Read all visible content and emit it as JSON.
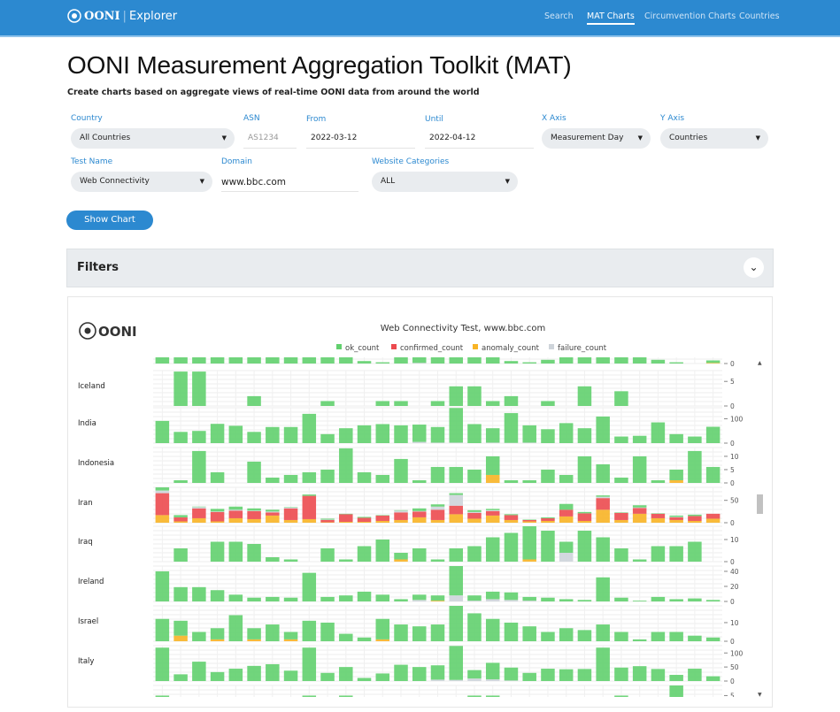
{
  "nav": {
    "brand": "OONI",
    "product": "Explorer",
    "items": [
      {
        "label": "Search"
      },
      {
        "label": "MAT Charts",
        "active": true
      },
      {
        "label": "Circumvention Charts"
      },
      {
        "label": "Countries"
      }
    ]
  },
  "page": {
    "title": "OONI Measurement Aggregation Toolkit (MAT)",
    "subtitle": "Create charts based on aggregate views of real-time OONI data from around the world"
  },
  "form": {
    "country": {
      "label": "Country",
      "value": "All Countries"
    },
    "asn": {
      "label": "ASN",
      "placeholder": "AS1234"
    },
    "from": {
      "label": "From",
      "value": "2022-03-12"
    },
    "until": {
      "label": "Until",
      "value": "2022-04-12"
    },
    "x_axis": {
      "label": "X Axis",
      "value": "Measurement Day"
    },
    "y_axis": {
      "label": "Y Axis",
      "value": "Countries"
    },
    "test_name": {
      "label": "Test Name",
      "value": "Web Connectivity"
    },
    "domain": {
      "label": "Domain",
      "value": "www.bbc.com"
    },
    "categories": {
      "label": "Website Categories",
      "value": "ALL"
    },
    "show_chart": "Show Chart"
  },
  "filters": {
    "label": "Filters",
    "icon": "chevron-down-icon"
  },
  "chart_logo": "OONI",
  "chart_data": {
    "type": "bar",
    "stacked": true,
    "title": "Web Connectivity Test, www.bbc.com",
    "x_axis": "Measurement Day",
    "legend_placement": "top-center",
    "legend": [
      {
        "name": "ok_count",
        "color": "#62d06e"
      },
      {
        "name": "confirmed_count",
        "color": "#ec4a4f"
      },
      {
        "name": "anomaly_count",
        "color": "#f8b425"
      },
      {
        "name": "failure_count",
        "color": "#ced4da"
      }
    ],
    "rows": [
      {
        "label": "",
        "ticks": [
          0
        ],
        "ylim": [
          0,
          57
        ],
        "ok": [
          10,
          10,
          10,
          10,
          10,
          10,
          10,
          10,
          10,
          10,
          10,
          4,
          2,
          10,
          9,
          10,
          10,
          10,
          10,
          4,
          2,
          6,
          10,
          10,
          10,
          10,
          10,
          6,
          2,
          0,
          4
        ],
        "anomaly": [
          0,
          0,
          0,
          0,
          0,
          0,
          0,
          0,
          0,
          0,
          0,
          0,
          0,
          0,
          0,
          0,
          0,
          0,
          0,
          0,
          0,
          0,
          0,
          0,
          0,
          0,
          0,
          0,
          0,
          0,
          1
        ],
        "failure": [
          0,
          0,
          0,
          0,
          0,
          0,
          0,
          0,
          0,
          0,
          0,
          0,
          0,
          0,
          1,
          0,
          0,
          0,
          0,
          0,
          0,
          0,
          0,
          0,
          0,
          0,
          0,
          0,
          0,
          0,
          0
        ]
      },
      {
        "label": "Iceland",
        "ticks": [
          0,
          5
        ],
        "ylim": [
          0,
          7.2
        ],
        "ok": [
          0,
          7,
          7,
          0,
          0,
          2,
          0,
          0,
          0,
          1,
          0,
          0,
          1,
          1,
          0,
          1,
          4,
          4,
          1,
          2,
          0,
          1,
          0,
          4,
          0,
          3,
          0,
          0,
          0,
          0,
          0
        ]
      },
      {
        "label": "India",
        "ticks": [
          0,
          100
        ],
        "ylim": [
          0,
          145
        ],
        "ok": [
          91,
          46,
          50,
          79,
          71,
          46,
          66,
          66,
          120,
          37,
          61,
          73,
          78,
          73,
          71,
          64,
          142,
          78,
          59,
          122,
          71,
          57,
          82,
          61,
          109,
          27,
          30,
          85,
          37,
          27,
          67
        ],
        "failure": [
          0,
          0,
          0,
          0,
          0,
          0,
          0,
          0,
          0,
          0,
          0,
          0,
          0,
          0,
          5,
          2,
          2,
          0,
          2,
          1,
          2,
          0,
          0,
          0,
          0,
          0,
          0,
          0,
          0,
          0,
          0
        ]
      },
      {
        "label": "Indonesia",
        "ticks": [
          0,
          5,
          10
        ],
        "ylim": [
          0,
          13.3
        ],
        "ok": [
          0,
          1,
          12,
          4,
          0,
          8,
          2,
          3,
          4,
          5,
          13,
          4,
          3,
          9,
          1,
          6,
          6,
          5,
          7,
          1,
          1,
          5,
          3,
          10,
          7,
          2,
          10,
          1,
          4,
          12,
          6
        ],
        "anomaly": [
          0,
          0,
          0,
          0,
          0,
          0,
          0,
          0,
          0,
          0,
          0,
          0,
          0,
          0,
          0,
          0,
          0,
          0,
          3,
          0,
          0,
          0,
          0,
          0,
          0,
          0,
          0,
          0,
          1,
          0,
          0
        ]
      },
      {
        "label": "Iran",
        "ticks": [
          0,
          50
        ],
        "ylim": [
          0,
          79
        ],
        "ok": [
          7,
          5,
          1,
          6,
          7,
          5,
          4,
          1,
          3,
          2,
          1,
          2,
          1,
          1,
          6,
          5,
          4,
          4,
          3,
          2,
          1,
          2,
          13,
          3,
          3,
          1,
          5,
          1,
          3,
          3,
          0
        ],
        "confirmed": [
          49,
          9,
          22,
          21,
          17,
          18,
          7,
          26,
          52,
          5,
          17,
          9,
          12,
          17,
          13,
          23,
          19,
          13,
          10,
          11,
          3,
          6,
          15,
          17,
          26,
          16,
          13,
          10,
          6,
          11,
          11
        ],
        "anomaly": [
          17,
          3,
          10,
          3,
          10,
          8,
          16,
          6,
          8,
          1,
          2,
          2,
          4,
          6,
          12,
          6,
          19,
          9,
          16,
          6,
          3,
          4,
          14,
          4,
          29,
          6,
          20,
          10,
          6,
          4,
          9
        ],
        "failure": [
          6,
          0,
          3,
          1,
          2,
          1,
          2,
          2,
          0,
          1,
          0,
          0,
          0,
          4,
          1,
          7,
          24,
          2,
          2,
          0,
          0,
          0,
          0,
          0,
          3,
          0,
          1,
          0,
          1,
          0,
          0
        ]
      },
      {
        "label": "Iraq",
        "ticks": [
          0,
          10
        ],
        "ylim": [
          0,
          16
        ],
        "ok": [
          0,
          6,
          0,
          9,
          9,
          8,
          2,
          1,
          0,
          6,
          1,
          7,
          10,
          3,
          6,
          1,
          6,
          7,
          11,
          13,
          15,
          14,
          5,
          14,
          11,
          6,
          1,
          7,
          7,
          9,
          0
        ],
        "anomaly": [
          0,
          0,
          0,
          0,
          0,
          0,
          0,
          0,
          0,
          0,
          0,
          0,
          0,
          1,
          0,
          0,
          0,
          0,
          0,
          0,
          1,
          0,
          0,
          0,
          0,
          0,
          0,
          0,
          0,
          0,
          0
        ],
        "failure": [
          0,
          0,
          0,
          0,
          0,
          0,
          0,
          0,
          0,
          0,
          0,
          0,
          0,
          0,
          0,
          0,
          0,
          0,
          0,
          0,
          0,
          0,
          4,
          0,
          0,
          0,
          0,
          0,
          0,
          0,
          0
        ]
      },
      {
        "label": "Ireland",
        "ticks": [
          0,
          20,
          40
        ],
        "ylim": [
          0,
          47
        ],
        "ok": [
          40,
          19,
          19,
          15,
          9,
          5,
          6,
          5,
          38,
          6,
          8,
          13,
          9,
          3,
          7,
          7,
          39,
          7,
          10,
          10,
          5,
          5,
          3,
          2,
          32,
          5,
          1,
          6,
          3,
          4,
          2
        ],
        "anomaly": [
          0,
          0,
          0,
          0,
          0,
          0,
          0,
          0,
          0,
          0,
          0,
          0,
          0,
          0,
          0,
          1,
          0,
          0,
          0,
          0,
          0,
          0,
          0,
          0,
          0,
          0,
          0,
          0,
          0,
          0,
          0
        ],
        "failure": [
          0,
          0,
          0,
          0,
          0,
          0,
          0,
          0,
          0,
          0,
          0,
          0,
          0,
          0,
          2,
          0,
          8,
          1,
          3,
          2,
          1,
          0,
          0,
          0,
          0,
          0,
          0,
          0,
          0,
          0,
          0
        ]
      },
      {
        "label": "Israel",
        "ticks": [
          0,
          10
        ],
        "ylim": [
          0,
          19
        ],
        "ok": [
          12,
          8,
          5,
          6,
          14,
          6,
          9,
          4,
          11,
          10,
          4,
          2,
          11,
          9,
          8,
          9,
          19,
          15,
          12,
          10,
          8,
          5,
          7,
          6,
          9,
          5,
          1,
          5,
          5,
          3,
          2
        ],
        "anomaly": [
          0,
          3,
          0,
          1,
          0,
          1,
          0,
          1,
          0,
          0,
          0,
          0,
          1,
          0,
          0,
          0,
          0,
          0,
          0,
          0,
          0,
          0,
          0,
          0,
          0,
          0,
          0,
          0,
          0,
          0,
          0
        ]
      },
      {
        "label": "Italy",
        "ticks": [
          0,
          50,
          100
        ],
        "ylim": [
          0,
          126
        ],
        "ok": [
          119,
          24,
          69,
          32,
          44,
          54,
          60,
          37,
          119,
          29,
          50,
          11,
          27,
          58,
          50,
          51,
          121,
          30,
          59,
          46,
          29,
          44,
          42,
          43,
          119,
          48,
          53,
          43,
          22,
          44,
          17
        ],
        "failure": [
          0,
          0,
          0,
          0,
          0,
          0,
          0,
          0,
          0,
          0,
          0,
          0,
          0,
          0,
          0,
          5,
          4,
          9,
          6,
          2,
          0,
          0,
          0,
          0,
          0,
          0,
          0,
          0,
          0,
          0,
          0
        ]
      },
      {
        "label": "",
        "ticks": [
          5
        ],
        "ylim": [
          0,
          7
        ],
        "ok": [
          5,
          0,
          0,
          0,
          0,
          0,
          0,
          0,
          5,
          0,
          5,
          0,
          0,
          0,
          0,
          0,
          0,
          5,
          5,
          0,
          0,
          0,
          0,
          0,
          0,
          5,
          0,
          0,
          7,
          0,
          0
        ]
      }
    ]
  }
}
